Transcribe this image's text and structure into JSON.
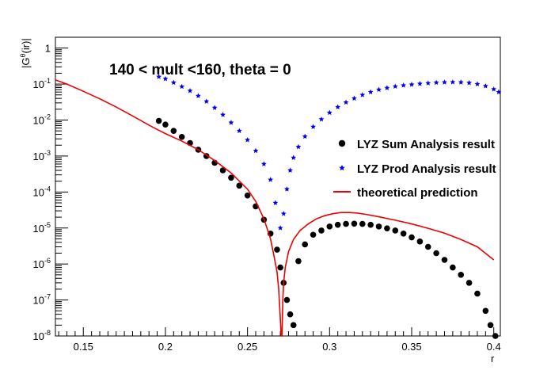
{
  "chart_data": {
    "type": "scatter",
    "title": "140 < mult <160, theta = 0",
    "xlabel": "r",
    "ylabel": "|Gθ(ir)|",
    "xlim": [
      0.133,
      0.404
    ],
    "ylim": [
      1e-08,
      2
    ],
    "yscale": "log",
    "grid": false,
    "legend_position": "right",
    "x_ticks": [
      "0.15",
      "0.2",
      "0.25",
      "0.3",
      "0.35",
      "0.4"
    ],
    "x_tick_values": [
      0.15,
      0.2,
      0.25,
      0.3,
      0.35,
      0.4
    ],
    "y_ticks": [
      {
        "base": "10",
        "exp": "-8",
        "value": 1e-08
      },
      {
        "base": "10",
        "exp": "-7",
        "value": 1e-07
      },
      {
        "base": "10",
        "exp": "-6",
        "value": 1e-06
      },
      {
        "base": "10",
        "exp": "-5",
        "value": 1e-05
      },
      {
        "base": "10",
        "exp": "-4",
        "value": 0.0001
      },
      {
        "base": "10",
        "exp": "-3",
        "value": 0.001
      },
      {
        "base": "10",
        "exp": "-2",
        "value": 0.01
      },
      {
        "base": "10",
        "exp": "-1",
        "value": 0.1
      },
      {
        "base": "1",
        "exp": "",
        "value": 1
      }
    ],
    "series": [
      {
        "name": "LYZ Sum Analysis result",
        "marker": "circle",
        "color": "#000000",
        "x": [
          0.196,
          0.2,
          0.205,
          0.21,
          0.215,
          0.22,
          0.225,
          0.23,
          0.235,
          0.24,
          0.245,
          0.25,
          0.255,
          0.26,
          0.264,
          0.268,
          0.27,
          0.272,
          0.274,
          0.276,
          0.278,
          0.281,
          0.285,
          0.29,
          0.295,
          0.3,
          0.305,
          0.31,
          0.315,
          0.32,
          0.325,
          0.33,
          0.335,
          0.34,
          0.345,
          0.35,
          0.355,
          0.36,
          0.365,
          0.37,
          0.375,
          0.38,
          0.385,
          0.39,
          0.395,
          0.398,
          0.401
        ],
        "y": [
          0.0095,
          0.0075,
          0.005,
          0.0034,
          0.0023,
          0.0015,
          0.001,
          0.00065,
          0.0004,
          0.00025,
          0.00015,
          8e-05,
          4e-05,
          1.7e-05,
          7e-06,
          2.5e-06,
          8e-07,
          3e-07,
          1e-07,
          4e-08,
          2e-08,
          1.2e-06,
          3.5e-06,
          6.5e-06,
          8.5e-06,
          1.1e-05,
          1.23e-05,
          1.3e-05,
          1.32e-05,
          1.3e-05,
          1.23e-05,
          1.1e-05,
          9.8e-06,
          8.5e-06,
          7e-06,
          5.5e-06,
          4.2e-06,
          3e-06,
          2e-06,
          1.3e-06,
          8e-07,
          5e-07,
          3e-07,
          1.5e-07,
          5e-08,
          2e-08,
          1e-08
        ]
      },
      {
        "name": "LYZ Prod Analysis result",
        "marker": "star",
        "color": "#0000ee",
        "x": [
          0.196,
          0.2,
          0.205,
          0.21,
          0.215,
          0.22,
          0.225,
          0.23,
          0.235,
          0.24,
          0.245,
          0.25,
          0.255,
          0.26,
          0.264,
          0.267,
          0.27,
          0.272,
          0.274,
          0.276,
          0.278,
          0.281,
          0.285,
          0.29,
          0.295,
          0.3,
          0.305,
          0.31,
          0.315,
          0.32,
          0.325,
          0.33,
          0.335,
          0.34,
          0.345,
          0.35,
          0.355,
          0.36,
          0.365,
          0.37,
          0.375,
          0.38,
          0.385,
          0.39,
          0.395,
          0.4,
          0.403
        ],
        "y": [
          0.16,
          0.14,
          0.11,
          0.085,
          0.065,
          0.047,
          0.033,
          0.022,
          0.014,
          0.0085,
          0.005,
          0.0028,
          0.0014,
          0.0006,
          0.00022,
          5e-05,
          1e-05,
          2.5e-05,
          0.00012,
          0.0004,
          0.0009,
          0.0018,
          0.0035,
          0.0065,
          0.0105,
          0.016,
          0.023,
          0.031,
          0.04,
          0.05,
          0.06,
          0.07,
          0.078,
          0.086,
          0.092,
          0.097,
          0.102,
          0.106,
          0.11,
          0.112,
          0.113,
          0.112,
          0.108,
          0.1,
          0.088,
          0.072,
          0.06
        ]
      },
      {
        "name": "theoretical prediction",
        "marker": "line",
        "color": "#ee0000",
        "x": [
          0.133,
          0.14,
          0.15,
          0.16,
          0.17,
          0.18,
          0.19,
          0.196,
          0.2,
          0.21,
          0.22,
          0.23,
          0.24,
          0.25,
          0.255,
          0.26,
          0.264,
          0.266,
          0.268,
          0.269,
          0.27,
          0.2705,
          0.271,
          0.2715,
          0.272,
          0.273,
          0.275,
          0.278,
          0.282,
          0.287,
          0.292,
          0.297,
          0.302,
          0.307,
          0.312,
          0.317,
          0.322,
          0.33,
          0.34,
          0.35,
          0.36,
          0.37,
          0.38,
          0.39,
          0.4
        ],
        "y": [
          0.13,
          0.1,
          0.063,
          0.039,
          0.023,
          0.013,
          0.0072,
          0.0052,
          0.0042,
          0.0026,
          0.0015,
          0.00075,
          0.00034,
          0.00012,
          5.5e-05,
          1.8e-05,
          5e-06,
          1.8e-06,
          6e-07,
          2e-07,
          3e-08,
          1e-08,
          1e-08,
          1e-07,
          3e-07,
          8e-07,
          2.2e-06,
          4.8e-06,
          8.5e-06,
          1.3e-05,
          1.8e-05,
          2.2e-05,
          2.5e-05,
          2.7e-05,
          2.7e-05,
          2.6e-05,
          2.4e-05,
          2.05e-05,
          1.65e-05,
          1.3e-05,
          9.8e-06,
          7.2e-06,
          4.8e-06,
          3e-06,
          1.3e-06
        ]
      }
    ]
  }
}
